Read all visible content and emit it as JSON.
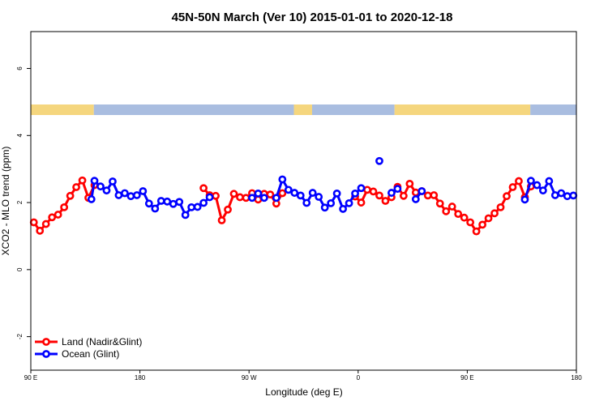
{
  "chart_data": {
    "type": "line",
    "title": "45N-50N March (Ver 10)   2015-01-01 to 2020-12-18",
    "xlabel": "Longitude (deg E)",
    "ylabel": "XCO2 - MLO trend (ppm)",
    "x_ticks": [
      {
        "value": 90,
        "label": "90 E"
      },
      {
        "value": 180,
        "label": "180"
      },
      {
        "value": 270,
        "label": "90 W"
      },
      {
        "value": 360,
        "label": "0"
      },
      {
        "value": 450,
        "label": "90 E"
      },
      {
        "value": 540,
        "label": "180"
      }
    ],
    "y_ticks": [
      {
        "value": -2,
        "label": "-2"
      },
      {
        "value": 0,
        "label": "0"
      },
      {
        "value": 2,
        "label": "2"
      },
      {
        "value": 4,
        "label": "4"
      },
      {
        "value": 6,
        "label": "6"
      }
    ],
    "xlim": [
      90,
      540
    ],
    "ylim": [
      -3,
      7.1
    ],
    "grid": false,
    "legend_position": "bottom-left",
    "land_band": {
      "colors": {
        "land": "#f5d67e",
        "ocean": "#a9bde0"
      },
      "segments": [
        {
          "type": "land",
          "from": 90,
          "to": 142
        },
        {
          "type": "ocean",
          "from": 142,
          "to": 307
        },
        {
          "type": "land",
          "from": 307,
          "to": 322
        },
        {
          "type": "ocean",
          "from": 322,
          "to": 390
        },
        {
          "type": "land",
          "from": 390,
          "to": 502
        },
        {
          "type": "ocean",
          "from": 502,
          "to": 540
        }
      ]
    },
    "series": [
      {
        "name": "Land (Nadir&Glint)",
        "color": "#ff0000",
        "segments": [
          [
            [
              92.5,
              1.41
            ],
            [
              97.5,
              1.16
            ],
            [
              102.5,
              1.36
            ],
            [
              107.5,
              1.56
            ],
            [
              112.5,
              1.64
            ],
            [
              117.5,
              1.86
            ],
            [
              122.5,
              2.2
            ],
            [
              127.5,
              2.46
            ],
            [
              132.5,
              2.66
            ],
            [
              137.5,
              2.14
            ],
            [
              142.5,
              2.52
            ]
          ],
          [
            [
              232.5,
              2.43
            ],
            [
              237.5,
              2.22
            ],
            [
              242.5,
              2.2
            ],
            [
              247.5,
              1.47
            ],
            [
              252.5,
              1.79
            ],
            [
              257.5,
              2.26
            ],
            [
              262.5,
              2.16
            ],
            [
              267.5,
              2.14
            ],
            [
              272.5,
              2.28
            ],
            [
              277.5,
              2.09
            ],
            [
              282.5,
              2.26
            ],
            [
              287.5,
              2.24
            ],
            [
              292.5,
              1.97
            ],
            [
              297.5,
              2.28
            ]
          ],
          [
            [
              357.5,
              2.18
            ],
            [
              362.5,
              2.0
            ],
            [
              367.5,
              2.38
            ],
            [
              372.5,
              2.33
            ],
            [
              377.5,
              2.21
            ],
            [
              382.5,
              2.05
            ],
            [
              387.5,
              2.16
            ],
            [
              392.5,
              2.47
            ],
            [
              397.5,
              2.2
            ],
            [
              402.5,
              2.56
            ],
            [
              407.5,
              2.3
            ],
            [
              412.5,
              2.34
            ],
            [
              417.5,
              2.21
            ],
            [
              422.5,
              2.22
            ],
            [
              427.5,
              1.97
            ],
            [
              432.5,
              1.74
            ],
            [
              437.5,
              1.88
            ],
            [
              442.5,
              1.66
            ],
            [
              447.5,
              1.55
            ],
            [
              452.5,
              1.41
            ],
            [
              457.5,
              1.14
            ],
            [
              462.5,
              1.34
            ],
            [
              467.5,
              1.53
            ],
            [
              472.5,
              1.68
            ],
            [
              477.5,
              1.86
            ],
            [
              482.5,
              2.19
            ],
            [
              487.5,
              2.46
            ],
            [
              492.5,
              2.64
            ],
            [
              497.5,
              2.16
            ],
            [
              502.5,
              2.48
            ]
          ]
        ]
      },
      {
        "name": "Ocean (Glint)",
        "color": "#0000ff",
        "segments": [
          [
            [
              140,
              2.1
            ],
            [
              142.5,
              2.65
            ],
            [
              147.5,
              2.48
            ],
            [
              152.5,
              2.36
            ],
            [
              157.5,
              2.63
            ],
            [
              162.5,
              2.22
            ],
            [
              167.5,
              2.28
            ],
            [
              172.5,
              2.19
            ],
            [
              177.5,
              2.22
            ],
            [
              182.5,
              2.34
            ],
            [
              187.5,
              1.97
            ],
            [
              192.5,
              1.82
            ],
            [
              197.5,
              2.05
            ],
            [
              202.5,
              2.03
            ],
            [
              207.5,
              1.96
            ],
            [
              212.5,
              2.02
            ],
            [
              217.5,
              1.63
            ],
            [
              222.5,
              1.86
            ],
            [
              227.5,
              1.87
            ],
            [
              232.5,
              1.99
            ],
            [
              237.5,
              2.16
            ]
          ],
          [
            [
              272.5,
              2.14
            ],
            [
              277.5,
              2.27
            ],
            [
              282.5,
              2.14
            ]
          ],
          [
            [
              292.5,
              2.14
            ],
            [
              297.5,
              2.69
            ],
            [
              302.5,
              2.38
            ],
            [
              307.5,
              2.29
            ],
            [
              312.5,
              2.21
            ],
            [
              317.5,
              1.99
            ],
            [
              322.5,
              2.29
            ],
            [
              327.5,
              2.17
            ],
            [
              332.5,
              1.85
            ],
            [
              337.5,
              1.98
            ],
            [
              342.5,
              2.27
            ],
            [
              347.5,
              1.81
            ],
            [
              352.5,
              1.98
            ],
            [
              357.5,
              2.27
            ],
            [
              362.5,
              2.43
            ]
          ],
          [
            [
              377.5,
              3.24
            ]
          ],
          [
            [
              387.5,
              2.29
            ],
            [
              392.5,
              2.41
            ]
          ],
          [
            [
              407.5,
              2.1
            ],
            [
              412.5,
              2.34
            ]
          ],
          [
            [
              497.5,
              2.09
            ],
            [
              502.5,
              2.65
            ],
            [
              507.5,
              2.52
            ],
            [
              512.5,
              2.36
            ],
            [
              517.5,
              2.64
            ],
            [
              522.5,
              2.22
            ],
            [
              527.5,
              2.28
            ],
            [
              532.5,
              2.19
            ],
            [
              537.5,
              2.21
            ]
          ]
        ]
      }
    ]
  }
}
